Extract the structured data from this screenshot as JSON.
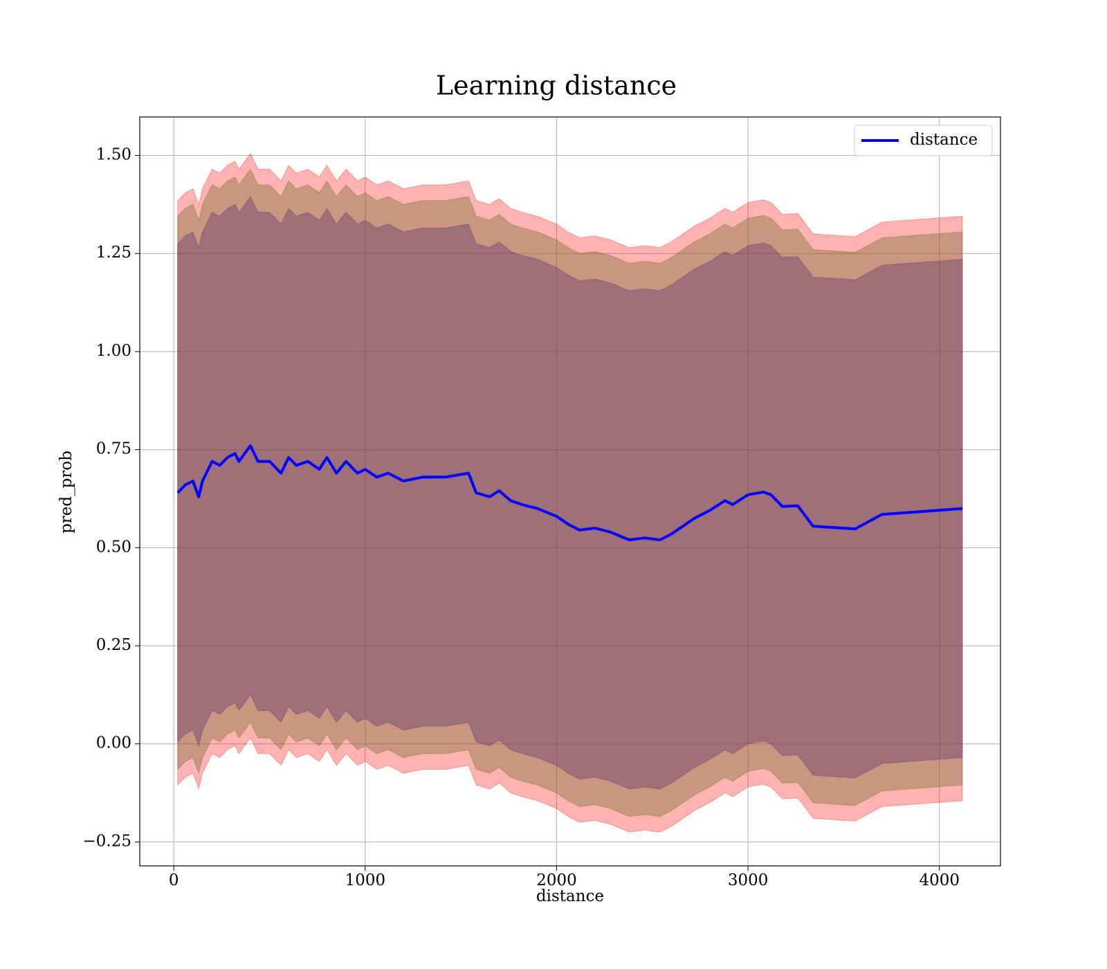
{
  "chart_data": {
    "type": "line",
    "title": "Learning distance",
    "xlabel": "distance",
    "ylabel": "pred_prob",
    "x": [
      20,
      60,
      100,
      130,
      150,
      180,
      200,
      240,
      280,
      320,
      340,
      400,
      440,
      500,
      560,
      600,
      640,
      700,
      760,
      800,
      850,
      900,
      960,
      1000,
      1060,
      1120,
      1200,
      1300,
      1420,
      1540,
      1580,
      1650,
      1700,
      1760,
      1820,
      1900,
      2000,
      2060,
      2120,
      2200,
      2280,
      2380,
      2460,
      2540,
      2600,
      2660,
      2720,
      2800,
      2880,
      2920,
      3000,
      3080,
      3120,
      3180,
      3260,
      3340,
      3560,
      3700,
      4120
    ],
    "series": [
      {
        "name": "distance",
        "color": "#0000ff",
        "values": [
          0.64,
          0.66,
          0.67,
          0.63,
          0.67,
          0.7,
          0.72,
          0.71,
          0.73,
          0.74,
          0.72,
          0.76,
          0.72,
          0.72,
          0.69,
          0.73,
          0.71,
          0.72,
          0.7,
          0.73,
          0.69,
          0.72,
          0.69,
          0.7,
          0.68,
          0.69,
          0.67,
          0.68,
          0.68,
          0.69,
          0.64,
          0.63,
          0.645,
          0.62,
          0.61,
          0.6,
          0.58,
          0.56,
          0.545,
          0.55,
          0.54,
          0.52,
          0.525,
          0.52,
          0.535,
          0.555,
          0.575,
          0.595,
          0.62,
          0.61,
          0.635,
          0.642,
          0.635,
          0.605,
          0.607,
          0.555,
          0.548,
          0.585,
          0.6
        ]
      }
    ],
    "bands": [
      {
        "color": "#ff0000",
        "alpha": 0.3,
        "upper": [
          1.385,
          1.405,
          1.415,
          1.375,
          1.415,
          1.445,
          1.465,
          1.455,
          1.475,
          1.485,
          1.465,
          1.505,
          1.465,
          1.465,
          1.435,
          1.475,
          1.455,
          1.465,
          1.445,
          1.475,
          1.435,
          1.465,
          1.435,
          1.445,
          1.425,
          1.435,
          1.415,
          1.425,
          1.425,
          1.435,
          1.385,
          1.375,
          1.39,
          1.365,
          1.355,
          1.345,
          1.325,
          1.305,
          1.29,
          1.295,
          1.285,
          1.265,
          1.27,
          1.265,
          1.28,
          1.3,
          1.32,
          1.34,
          1.365,
          1.355,
          1.38,
          1.387,
          1.38,
          1.35,
          1.352,
          1.3,
          1.293,
          1.33,
          1.345
        ],
        "lower": [
          -0.105,
          -0.085,
          -0.075,
          -0.115,
          -0.075,
          -0.045,
          -0.025,
          -0.035,
          -0.015,
          -0.005,
          -0.025,
          0.015,
          -0.025,
          -0.025,
          -0.055,
          -0.015,
          -0.035,
          -0.025,
          -0.045,
          -0.015,
          -0.055,
          -0.025,
          -0.055,
          -0.045,
          -0.065,
          -0.055,
          -0.075,
          -0.065,
          -0.065,
          -0.055,
          -0.105,
          -0.115,
          -0.1,
          -0.125,
          -0.135,
          -0.145,
          -0.165,
          -0.185,
          -0.2,
          -0.195,
          -0.205,
          -0.225,
          -0.22,
          -0.225,
          -0.21,
          -0.19,
          -0.17,
          -0.15,
          -0.125,
          -0.135,
          -0.11,
          -0.103,
          -0.11,
          -0.14,
          -0.138,
          -0.19,
          -0.197,
          -0.16,
          -0.145
        ]
      },
      {
        "color": "#786c35",
        "alpha": 0.4,
        "upper": [
          1.345,
          1.365,
          1.375,
          1.335,
          1.375,
          1.405,
          1.425,
          1.415,
          1.435,
          1.445,
          1.425,
          1.465,
          1.425,
          1.425,
          1.395,
          1.435,
          1.415,
          1.425,
          1.405,
          1.435,
          1.395,
          1.425,
          1.395,
          1.405,
          1.385,
          1.395,
          1.375,
          1.385,
          1.385,
          1.395,
          1.345,
          1.335,
          1.35,
          1.325,
          1.315,
          1.305,
          1.285,
          1.265,
          1.25,
          1.255,
          1.245,
          1.225,
          1.23,
          1.225,
          1.24,
          1.26,
          1.28,
          1.3,
          1.325,
          1.315,
          1.34,
          1.347,
          1.34,
          1.31,
          1.312,
          1.26,
          1.253,
          1.29,
          1.305
        ],
        "lower": [
          -0.065,
          -0.045,
          -0.035,
          -0.075,
          -0.035,
          -0.005,
          0.015,
          0.005,
          0.025,
          0.035,
          0.015,
          0.055,
          0.015,
          0.015,
          -0.015,
          0.025,
          0.005,
          0.015,
          -0.005,
          0.025,
          -0.015,
          0.015,
          -0.015,
          -0.005,
          -0.025,
          -0.015,
          -0.035,
          -0.025,
          -0.025,
          -0.015,
          -0.065,
          -0.075,
          -0.06,
          -0.085,
          -0.095,
          -0.105,
          -0.125,
          -0.145,
          -0.16,
          -0.155,
          -0.165,
          -0.185,
          -0.18,
          -0.185,
          -0.17,
          -0.15,
          -0.13,
          -0.11,
          -0.085,
          -0.095,
          -0.07,
          -0.063,
          -0.07,
          -0.1,
          -0.098,
          -0.15,
          -0.157,
          -0.12,
          -0.105
        ]
      },
      {
        "color": "#62376c",
        "alpha": 0.4,
        "upper": [
          1.275,
          1.295,
          1.305,
          1.265,
          1.305,
          1.335,
          1.355,
          1.345,
          1.365,
          1.375,
          1.355,
          1.395,
          1.355,
          1.355,
          1.325,
          1.365,
          1.345,
          1.355,
          1.335,
          1.365,
          1.325,
          1.355,
          1.325,
          1.335,
          1.315,
          1.325,
          1.305,
          1.315,
          1.315,
          1.325,
          1.275,
          1.265,
          1.28,
          1.255,
          1.245,
          1.235,
          1.215,
          1.195,
          1.18,
          1.185,
          1.175,
          1.155,
          1.16,
          1.155,
          1.17,
          1.19,
          1.21,
          1.23,
          1.255,
          1.245,
          1.27,
          1.277,
          1.27,
          1.24,
          1.242,
          1.19,
          1.183,
          1.22,
          1.235
        ],
        "lower": [
          0.005,
          0.025,
          0.035,
          -0.005,
          0.035,
          0.065,
          0.085,
          0.075,
          0.095,
          0.105,
          0.085,
          0.125,
          0.085,
          0.085,
          0.055,
          0.095,
          0.075,
          0.085,
          0.065,
          0.095,
          0.055,
          0.085,
          0.055,
          0.065,
          0.045,
          0.055,
          0.035,
          0.045,
          0.045,
          0.055,
          0.005,
          -0.005,
          0.01,
          -0.015,
          -0.025,
          -0.035,
          -0.055,
          -0.075,
          -0.09,
          -0.085,
          -0.095,
          -0.115,
          -0.11,
          -0.115,
          -0.1,
          -0.08,
          -0.06,
          -0.04,
          -0.015,
          -0.025,
          0,
          0.007,
          0,
          -0.03,
          -0.028,
          -0.08,
          -0.087,
          -0.05,
          -0.035
        ]
      }
    ],
    "xlim": [
      -178,
      4319
    ],
    "ylim": [
      -0.311,
      1.598
    ],
    "xticks": [
      0,
      1000,
      2000,
      3000,
      4000
    ],
    "yticks": [
      {
        "value": -0.25,
        "label": "−0.25"
      },
      {
        "value": 0,
        "label": "0.00"
      },
      {
        "value": 0.25,
        "label": "0.25"
      },
      {
        "value": 0.5,
        "label": "0.50"
      },
      {
        "value": 0.75,
        "label": "0.75"
      },
      {
        "value": 1,
        "label": "1.00"
      },
      {
        "value": 1.25,
        "label": "1.25"
      },
      {
        "value": 1.5,
        "label": "1.50"
      }
    ],
    "grid": true,
    "legend": "upper right"
  }
}
